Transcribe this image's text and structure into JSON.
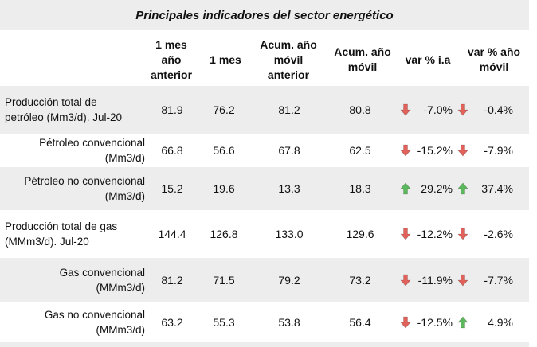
{
  "title": "Principales indicadores del sector energético",
  "headers": {
    "c1": [
      "1 mes",
      "año",
      "anterior"
    ],
    "c2": [
      "1 mes"
    ],
    "c3": [
      "Acum. año",
      "móvil",
      "anterior"
    ],
    "c4": [
      "Acum. año",
      "móvil"
    ],
    "c5": [
      "var % i.a"
    ],
    "c6": [
      "var % año",
      "móvil"
    ]
  },
  "rows": [
    {
      "label": [
        "Producción total de",
        "petróleo (Mm3/d). Jul-20"
      ],
      "align": "left",
      "v1": "81.9",
      "v2": "76.2",
      "v3": "81.2",
      "v4": "80.8",
      "a1": "down",
      "p1": "-7.0%",
      "a2": "down",
      "p2": "-0.4%"
    },
    {
      "label": [
        "Pétroleo convencional",
        "(Mm3/d)"
      ],
      "align": "right",
      "v1": "66.8",
      "v2": "56.6",
      "v3": "67.8",
      "v4": "62.5",
      "a1": "down",
      "p1": "-15.2%",
      "a2": "down",
      "p2": "-7.9%"
    },
    {
      "label": [
        "Pétroleo no convencional",
        "(Mm3/d)"
      ],
      "align": "right",
      "v1": "15.2",
      "v2": "19.6",
      "v3": "13.3",
      "v4": "18.3",
      "a1": "up",
      "p1": "29.2%",
      "a2": "up",
      "p2": "37.4%"
    },
    {
      "label": [
        "Producción total de gas",
        "(MMm3/d). Jul-20"
      ],
      "align": "left",
      "v1": "144.4",
      "v2": "126.8",
      "v3": "133.0",
      "v4": "129.6",
      "a1": "down",
      "p1": "-12.2%",
      "a2": "down",
      "p2": "-2.6%"
    },
    {
      "label": [
        "Gas convencional",
        "(MMm3/d)"
      ],
      "align": "right",
      "v1": "81.2",
      "v2": "71.5",
      "v3": "79.2",
      "v4": "73.2",
      "a1": "down",
      "p1": "-11.9%",
      "a2": "down",
      "p2": "-7.7%"
    },
    {
      "label": [
        "Gas no convencional",
        "(MMm3/d)"
      ],
      "align": "right",
      "v1": "63.2",
      "v2": "55.3",
      "v3": "53.8",
      "v4": "56.4",
      "a1": "down",
      "p1": "-12.5%",
      "a2": "up",
      "p2": "4.9%"
    }
  ],
  "colors": {
    "up": "#5cb85c",
    "down": "#e0625a",
    "shade": "#ededed"
  }
}
